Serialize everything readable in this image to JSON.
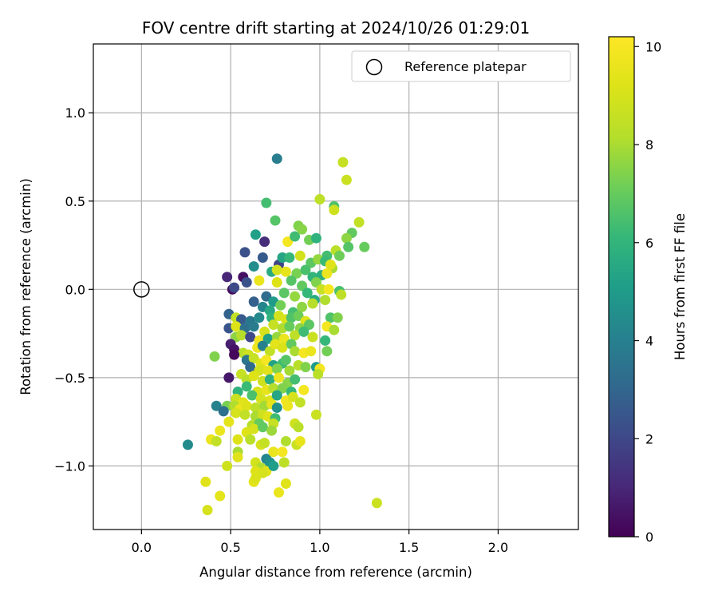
{
  "chart_data": {
    "type": "scatter",
    "title": "FOV centre drift starting at 2024/10/26 01:29:01",
    "xlabel": "Angular distance from reference (arcmin)",
    "ylabel": "Rotation from reference (arcmin)",
    "xlim": [
      -0.27,
      2.45
    ],
    "ylim": [
      -1.36,
      1.39
    ],
    "xticks": [
      0.0,
      0.5,
      1.0,
      1.5,
      2.0
    ],
    "xtick_labels": [
      "0.0",
      "0.5",
      "1.0",
      "1.5",
      "2.0"
    ],
    "yticks": [
      -1.0,
      -0.5,
      0.0,
      0.5,
      1.0
    ],
    "ytick_labels": [
      "−1.0",
      "−0.5",
      "0.0",
      "0.5",
      "1.0"
    ],
    "grid": true,
    "legend": {
      "placement": "top-right",
      "entries": [
        "Reference platepar"
      ]
    },
    "reference_point": {
      "x": 0.0,
      "y": 0.0
    },
    "colorbar": {
      "label": "Hours from first FF file",
      "range": [
        0,
        10.2
      ],
      "ticks": [
        0,
        2,
        4,
        6,
        8,
        10
      ],
      "tick_labels": [
        "0",
        "2",
        "4",
        "6",
        "8",
        "10"
      ],
      "colormap": "viridis"
    },
    "points": [
      [
        0.76,
        0.74,
        3.9
      ],
      [
        1.13,
        0.72,
        8.6
      ],
      [
        1.15,
        0.62,
        8.7
      ],
      [
        0.7,
        0.49,
        6.4
      ],
      [
        1.0,
        0.51,
        8.4
      ],
      [
        1.08,
        0.47,
        6.6
      ],
      [
        1.08,
        0.45,
        8.8
      ],
      [
        0.75,
        0.39,
        6.7
      ],
      [
        1.22,
        0.38,
        8.5
      ],
      [
        0.88,
        0.36,
        7.4
      ],
      [
        1.18,
        0.32,
        6.9
      ],
      [
        1.15,
        0.29,
        7.6
      ],
      [
        0.64,
        0.31,
        5.2
      ],
      [
        0.69,
        0.27,
        1.2
      ],
      [
        0.82,
        0.27,
        9.9
      ],
      [
        0.86,
        0.3,
        6.3
      ],
      [
        0.9,
        0.34,
        7.5
      ],
      [
        0.94,
        0.28,
        7.2
      ],
      [
        0.98,
        0.29,
        5.9
      ],
      [
        1.09,
        0.22,
        8.3
      ],
      [
        1.16,
        0.24,
        6.7
      ],
      [
        1.25,
        0.24,
        7.0
      ],
      [
        1.04,
        0.19,
        6.4
      ],
      [
        0.58,
        0.21,
        2.3
      ],
      [
        0.68,
        0.18,
        2.6
      ],
      [
        0.77,
        0.14,
        1.9
      ],
      [
        0.79,
        0.18,
        5.4
      ],
      [
        0.83,
        0.18,
        6.1
      ],
      [
        0.89,
        0.19,
        8.9
      ],
      [
        0.95,
        0.15,
        6.8
      ],
      [
        0.99,
        0.17,
        7.7
      ],
      [
        1.03,
        0.16,
        6.2
      ],
      [
        1.07,
        0.12,
        8.0
      ],
      [
        1.11,
        0.19,
        7.1
      ],
      [
        0.63,
        0.13,
        4.5
      ],
      [
        0.73,
        0.1,
        5.6
      ],
      [
        0.76,
        0.11,
        8.9
      ],
      [
        0.81,
        0.1,
        9.5
      ],
      [
        0.87,
        0.09,
        7.3
      ],
      [
        0.92,
        0.11,
        6.5
      ],
      [
        0.96,
        0.07,
        6.0
      ],
      [
        1.01,
        0.08,
        5.8
      ],
      [
        1.04,
        0.09,
        9.7
      ],
      [
        1.06,
        0.14,
        9.3
      ],
      [
        0.48,
        0.07,
        1.0
      ],
      [
        0.57,
        0.07,
        0.4
      ],
      [
        0.66,
        0.05,
        9.6
      ],
      [
        0.76,
        0.04,
        9.2
      ],
      [
        0.84,
        0.05,
        6.7
      ],
      [
        0.9,
        0.02,
        6.9
      ],
      [
        0.98,
        0.04,
        7.4
      ],
      [
        1.01,
        0.0,
        8.6
      ],
      [
        1.05,
        0.0,
        9.9
      ],
      [
        1.11,
        -0.01,
        6.5
      ],
      [
        0.51,
        0.0,
        0.3
      ],
      [
        0.52,
        0.01,
        2.1
      ],
      [
        0.59,
        0.04,
        2.3
      ],
      [
        0.63,
        -0.07,
        2.8
      ],
      [
        0.7,
        -0.04,
        3.2
      ],
      [
        0.74,
        -0.07,
        5.0
      ],
      [
        0.8,
        -0.02,
        6.8
      ],
      [
        0.86,
        -0.04,
        7.7
      ],
      [
        0.93,
        -0.02,
        6.1
      ],
      [
        0.97,
        -0.06,
        5.6
      ],
      [
        1.03,
        -0.06,
        8.1
      ],
      [
        1.12,
        -0.03,
        8.4
      ],
      [
        0.68,
        -0.1,
        4.2
      ],
      [
        0.72,
        -0.12,
        5.5
      ],
      [
        0.78,
        -0.09,
        7.2
      ],
      [
        0.85,
        -0.13,
        6.4
      ],
      [
        0.9,
        -0.1,
        7.6
      ],
      [
        0.96,
        -0.08,
        8.2
      ],
      [
        0.49,
        -0.14,
        2.9
      ],
      [
        0.53,
        -0.16,
        8.5
      ],
      [
        0.56,
        -0.17,
        2.6
      ],
      [
        0.61,
        -0.18,
        3.7
      ],
      [
        0.66,
        -0.16,
        4.3
      ],
      [
        0.73,
        -0.16,
        5.9
      ],
      [
        0.77,
        -0.15,
        8.9
      ],
      [
        0.81,
        -0.17,
        9.1
      ],
      [
        0.84,
        -0.16,
        6.6
      ],
      [
        0.88,
        -0.15,
        7.1
      ],
      [
        0.92,
        -0.18,
        9.2
      ],
      [
        1.06,
        -0.16,
        6.6
      ],
      [
        1.1,
        -0.16,
        7.4
      ],
      [
        0.49,
        -0.22,
        2.4
      ],
      [
        0.53,
        -0.21,
        9.2
      ],
      [
        0.58,
        -0.22,
        3.4
      ],
      [
        0.63,
        -0.21,
        3.8
      ],
      [
        0.69,
        -0.24,
        9.0
      ],
      [
        0.74,
        -0.2,
        8.6
      ],
      [
        0.79,
        -0.22,
        8.1
      ],
      [
        0.83,
        -0.21,
        7.0
      ],
      [
        0.89,
        -0.22,
        7.5
      ],
      [
        0.94,
        -0.2,
        6.8
      ],
      [
        1.04,
        -0.21,
        9.9
      ],
      [
        1.08,
        -0.23,
        8.0
      ],
      [
        0.53,
        -0.27,
        7.6
      ],
      [
        0.56,
        -0.26,
        8.2
      ],
      [
        0.61,
        -0.27,
        2.0
      ],
      [
        0.66,
        -0.29,
        9.8
      ],
      [
        0.71,
        -0.28,
        5.2
      ],
      [
        0.76,
        -0.27,
        7.7
      ],
      [
        0.8,
        -0.28,
        9.6
      ],
      [
        0.86,
        -0.26,
        8.4
      ],
      [
        0.91,
        -0.24,
        6.3
      ],
      [
        0.96,
        -0.27,
        8.7
      ],
      [
        1.03,
        -0.29,
        6.1
      ],
      [
        0.5,
        -0.31,
        0.8
      ],
      [
        0.52,
        -0.34,
        0.5
      ],
      [
        0.57,
        -0.36,
        8.3
      ],
      [
        0.6,
        -0.37,
        8.8
      ],
      [
        0.65,
        -0.33,
        9.7
      ],
      [
        0.68,
        -0.32,
        4.0
      ],
      [
        0.72,
        -0.35,
        8.5
      ],
      [
        0.75,
        -0.31,
        9.4
      ],
      [
        0.79,
        -0.33,
        9.1
      ],
      [
        0.84,
        -0.31,
        6.9
      ],
      [
        0.86,
        -0.35,
        8.0
      ],
      [
        0.91,
        -0.36,
        9.9
      ],
      [
        0.95,
        -0.35,
        9.6
      ],
      [
        1.04,
        -0.35,
        7.2
      ],
      [
        0.41,
        -0.38,
        7.4
      ],
      [
        0.52,
        -0.37,
        0.2
      ],
      [
        0.59,
        -0.4,
        3.6
      ],
      [
        0.63,
        -0.39,
        8.6
      ],
      [
        0.67,
        -0.42,
        9.2
      ],
      [
        0.7,
        -0.4,
        9.9
      ],
      [
        0.74,
        -0.43,
        5.3
      ],
      [
        0.79,
        -0.42,
        6.3
      ],
      [
        0.81,
        -0.4,
        6.7
      ],
      [
        0.88,
        -0.43,
        8.2
      ],
      [
        0.92,
        -0.44,
        7.4
      ],
      [
        0.98,
        -0.44,
        5.0
      ],
      [
        1.0,
        -0.45,
        9.9
      ],
      [
        0.61,
        -0.44,
        3.1
      ],
      [
        0.66,
        -0.46,
        8.9
      ],
      [
        0.71,
        -0.46,
        9.3
      ],
      [
        0.76,
        -0.45,
        7.4
      ],
      [
        0.83,
        -0.46,
        7.9
      ],
      [
        0.49,
        -0.5,
        0.6
      ],
      [
        0.56,
        -0.48,
        8.6
      ],
      [
        0.59,
        -0.51,
        8.3
      ],
      [
        0.63,
        -0.49,
        9.2
      ],
      [
        0.68,
        -0.52,
        8.8
      ],
      [
        0.72,
        -0.51,
        5.8
      ],
      [
        0.77,
        -0.5,
        9.7
      ],
      [
        0.82,
        -0.53,
        7.5
      ],
      [
        0.86,
        -0.51,
        6.4
      ],
      [
        0.99,
        -0.48,
        8.3
      ],
      [
        0.54,
        -0.58,
        5.9
      ],
      [
        0.59,
        -0.55,
        6.2
      ],
      [
        0.65,
        -0.58,
        9.0
      ],
      [
        0.7,
        -0.57,
        9.5
      ],
      [
        0.74,
        -0.56,
        8.2
      ],
      [
        0.79,
        -0.56,
        7.4
      ],
      [
        0.84,
        -0.58,
        6.1
      ],
      [
        0.91,
        -0.57,
        9.9
      ],
      [
        0.53,
        -0.62,
        8.7
      ],
      [
        0.57,
        -0.64,
        9.3
      ],
      [
        0.62,
        -0.6,
        6.5
      ],
      [
        0.67,
        -0.62,
        8.9
      ],
      [
        0.72,
        -0.63,
        9.1
      ],
      [
        0.76,
        -0.6,
        5.4
      ],
      [
        0.81,
        -0.63,
        9.8
      ],
      [
        0.85,
        -0.61,
        9.0
      ],
      [
        0.89,
        -0.64,
        8.5
      ],
      [
        0.48,
        -0.66,
        7.3
      ],
      [
        0.52,
        -0.66,
        8.1
      ],
      [
        0.55,
        -0.68,
        9.6
      ],
      [
        0.59,
        -0.66,
        9.2
      ],
      [
        0.64,
        -0.67,
        8.4
      ],
      [
        0.69,
        -0.66,
        7.9
      ],
      [
        0.73,
        -0.65,
        9.5
      ],
      [
        0.76,
        -0.67,
        4.6
      ],
      [
        0.82,
        -0.66,
        9.7
      ],
      [
        0.42,
        -0.66,
        4.1
      ],
      [
        0.46,
        -0.69,
        3.4
      ],
      [
        0.53,
        -0.7,
        9.0
      ],
      [
        0.58,
        -0.71,
        8.5
      ],
      [
        0.64,
        -0.72,
        8.0
      ],
      [
        0.68,
        -0.71,
        8.8
      ],
      [
        0.71,
        -0.72,
        9.3
      ],
      [
        0.75,
        -0.73,
        6.3
      ],
      [
        0.49,
        -0.75,
        9.4
      ],
      [
        0.62,
        -0.77,
        8.2
      ],
      [
        0.66,
        -0.76,
        7.0
      ],
      [
        0.74,
        -0.76,
        8.6
      ],
      [
        0.86,
        -0.76,
        8.8
      ],
      [
        0.88,
        -0.78,
        8.3
      ],
      [
        0.98,
        -0.71,
        8.7
      ],
      [
        0.44,
        -0.8,
        9.6
      ],
      [
        0.59,
        -0.81,
        9.2
      ],
      [
        0.63,
        -0.79,
        9.0
      ],
      [
        0.68,
        -0.78,
        6.9
      ],
      [
        0.73,
        -0.8,
        7.8
      ],
      [
        0.39,
        -0.85,
        9.6
      ],
      [
        0.42,
        -0.86,
        8.5
      ],
      [
        0.54,
        -0.85,
        9.2
      ],
      [
        0.61,
        -0.85,
        8.3
      ],
      [
        0.67,
        -0.88,
        9.0
      ],
      [
        0.69,
        -0.87,
        8.6
      ],
      [
        0.81,
        -0.86,
        8.1
      ],
      [
        0.87,
        -0.88,
        8.7
      ],
      [
        0.89,
        -0.86,
        9.5
      ],
      [
        0.26,
        -0.88,
        4.4
      ],
      [
        0.54,
        -0.92,
        8.0
      ],
      [
        0.54,
        -0.95,
        9.3
      ],
      [
        0.7,
        -0.96,
        4.2
      ],
      [
        0.72,
        -0.98,
        4.6
      ],
      [
        0.74,
        -0.92,
        9.6
      ],
      [
        0.79,
        -0.92,
        9.9
      ],
      [
        0.48,
        -1.0,
        8.8
      ],
      [
        0.64,
        -0.98,
        8.9
      ],
      [
        0.67,
        -1.01,
        8.1
      ],
      [
        0.7,
        -1.03,
        9.4
      ],
      [
        0.74,
        -1.0,
        5.1
      ],
      [
        0.8,
        -0.98,
        8.4
      ],
      [
        0.64,
        -1.03,
        9.2
      ],
      [
        0.68,
        -1.04,
        9.0
      ],
      [
        0.36,
        -1.09,
        9.3
      ],
      [
        0.63,
        -1.09,
        9.4
      ],
      [
        0.64,
        -1.07,
        9.1
      ],
      [
        0.81,
        -1.1,
        9.3
      ],
      [
        0.77,
        -1.15,
        9.6
      ],
      [
        0.44,
        -1.17,
        9.4
      ],
      [
        0.37,
        -1.25,
        9.0
      ],
      [
        1.32,
        -1.21,
        8.7
      ]
    ]
  }
}
